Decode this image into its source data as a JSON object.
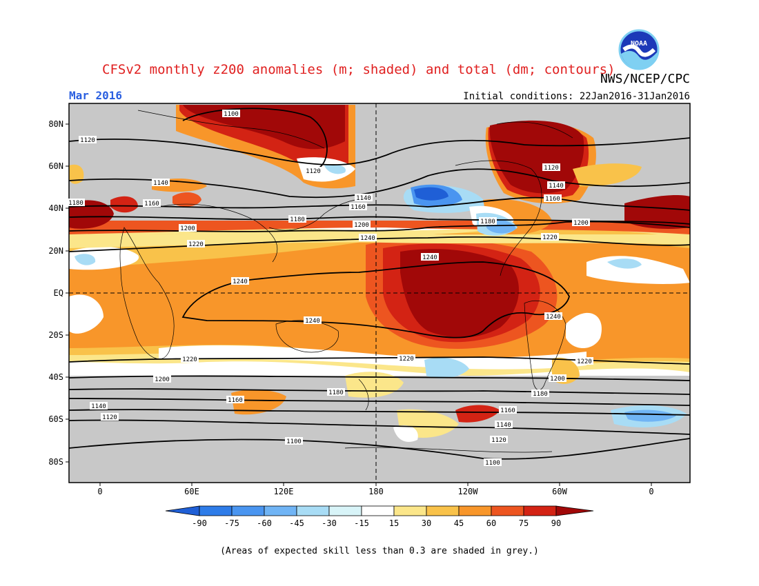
{
  "header": {
    "title": "CFSv2 monthly z200 anomalies (m; shaded) and total (dm; contours)",
    "org": "NWS/NCEP/CPC",
    "month": "Mar 2016",
    "initial_conditions": "Initial conditions: 22Jan2016-31Jan2016",
    "logo_text": "NOAA"
  },
  "map": {
    "lat_labels": [
      "80N",
      "60N",
      "40N",
      "20N",
      "EQ",
      "20S",
      "40S",
      "60S",
      "80S"
    ],
    "lon_labels": [
      "0",
      "60E",
      "120E",
      "180",
      "120W",
      "60W",
      "0"
    ],
    "contour_labels": [
      "1100",
      "1120",
      "1140",
      "1160",
      "1180",
      "1200",
      "1220",
      "1240",
      "1240",
      "1240",
      "1220",
      "1200",
      "1180",
      "1160",
      "1140",
      "1120",
      "1100",
      "1120",
      "1140",
      "1160",
      "1180",
      "1200",
      "1220",
      "1240",
      "1220",
      "1200",
      "1180",
      "1160",
      "1140",
      "1120",
      "1100",
      "1240",
      "1220",
      "1200",
      "1160",
      "1120",
      "1140",
      "1180"
    ],
    "skill_mask_color": "#c8c8c8"
  },
  "colorbar": {
    "ticks": [
      "-90",
      "-75",
      "-60",
      "-45",
      "-30",
      "-15",
      "15",
      "30",
      "45",
      "60",
      "75",
      "90"
    ],
    "colors": [
      "#1f5fd6",
      "#2e7ce8",
      "#4a95f0",
      "#70b4f5",
      "#a8dcf5",
      "#d8f4f8",
      "#ffffff",
      "#fbe68a",
      "#f9c24a",
      "#f8962a",
      "#ed5520",
      "#d32314",
      "#a10808"
    ]
  },
  "footnote": "(Areas of expected skill less than 0.3 are shaded in grey.)"
}
